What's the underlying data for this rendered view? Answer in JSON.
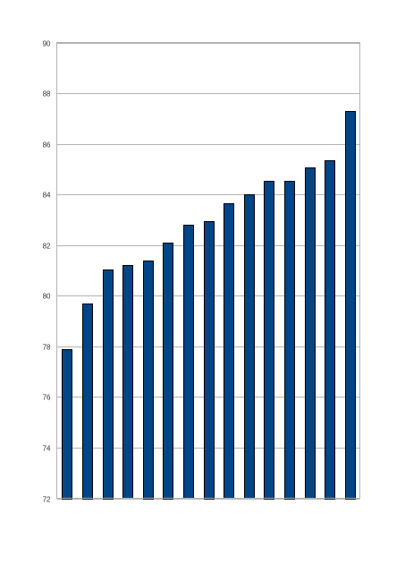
{
  "chart_data": {
    "type": "bar",
    "categories": [
      "",
      "",
      "",
      "",
      "",
      "",
      "",
      "",
      "",
      "",
      "",
      "",
      "",
      "",
      ""
    ],
    "values": [
      77.9,
      79.7,
      81.05,
      81.2,
      81.4,
      82.1,
      82.8,
      82.95,
      83.65,
      84.0,
      84.55,
      84.55,
      85.05,
      85.35,
      87.3
    ],
    "title": "",
    "xlabel": "",
    "ylabel": "",
    "ylim": [
      72,
      90
    ],
    "yticks": [
      72,
      74,
      76,
      78,
      80,
      82,
      84,
      86,
      88,
      90
    ],
    "grid": true,
    "legend": "none",
    "bar_color": "#004586"
  }
}
